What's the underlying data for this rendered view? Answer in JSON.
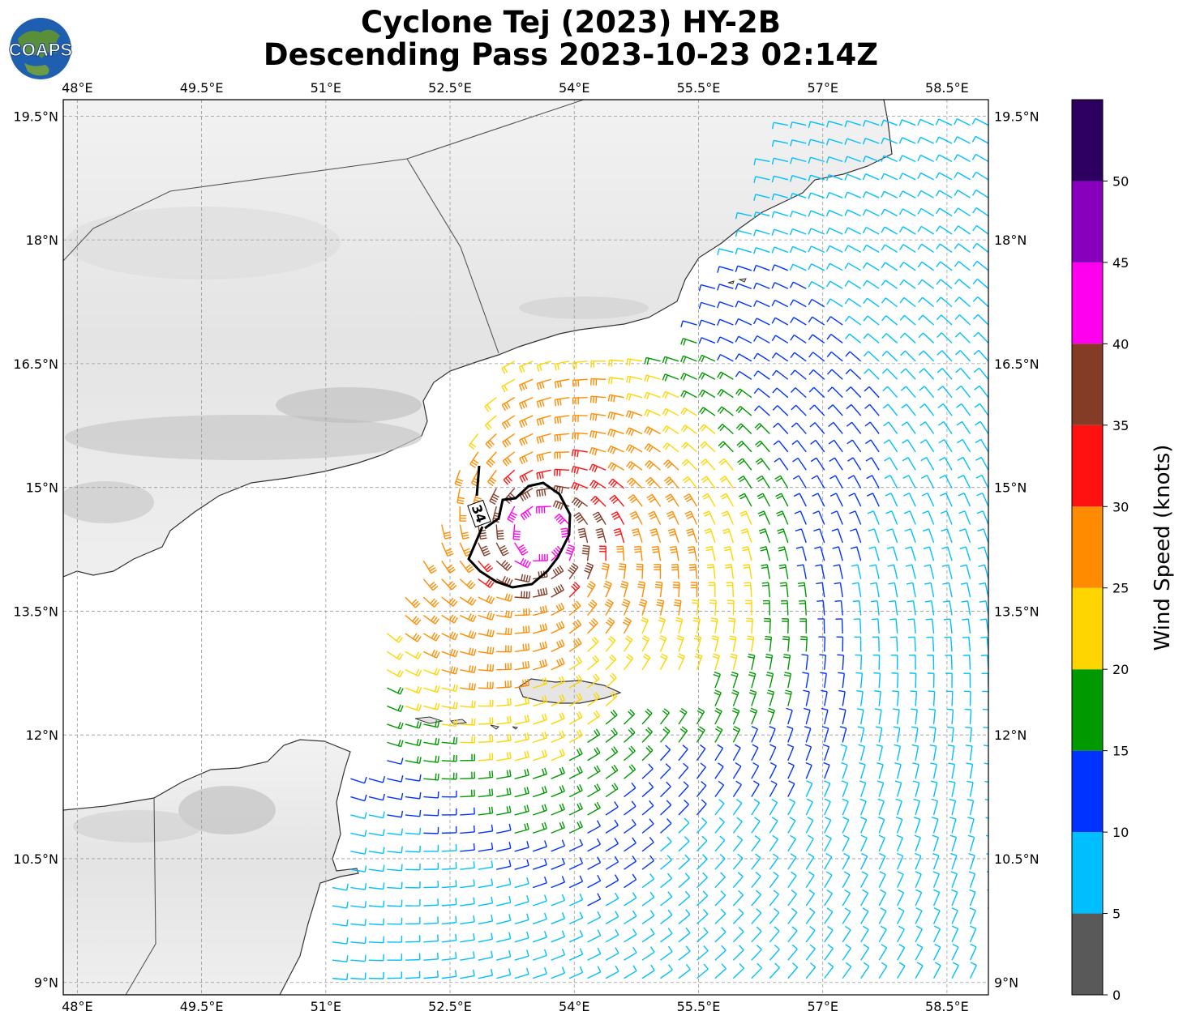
{
  "title": {
    "line1": "Cyclone Tej (2023) HY-2B",
    "line2": "Descending Pass 2023-10-23 02:14Z"
  },
  "logo": {
    "text": "COAPS"
  },
  "map": {
    "lon_range": [
      47.83,
      59.0
    ],
    "lat_range": [
      8.85,
      19.7
    ],
    "lon_ticks": [
      "48°E",
      "49.5°E",
      "51°E",
      "52.5°E",
      "54°E",
      "55.5°E",
      "57°E",
      "58.5°E"
    ],
    "lat_ticks": [
      "9°N",
      "10.5°N",
      "12°N",
      "13.5°N",
      "15°N",
      "16.5°N",
      "18°N",
      "19.5°N"
    ],
    "grid": true,
    "contour_label": "34",
    "storm_center": {
      "lon": 53.6,
      "lat": 14.4
    }
  },
  "colorbar": {
    "label": "Wind Speed (knots)",
    "ticks": [
      "0",
      "5",
      "10",
      "15",
      "20",
      "25",
      "30",
      "35",
      "40",
      "45",
      "50"
    ],
    "colors": [
      "#595959",
      "#00bfff",
      "#0033ff",
      "#009900",
      "#ffd500",
      "#ff8c00",
      "#ff1111",
      "#843c27",
      "#ff00ee",
      "#8800bb",
      "#2d0060"
    ]
  }
}
